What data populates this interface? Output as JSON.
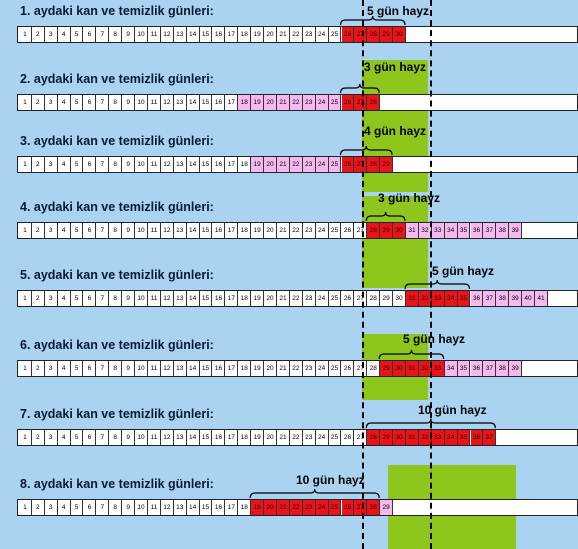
{
  "colors": {
    "sky": "#a9d3f1",
    "hayz": "#e8141a",
    "temiz": "#f6b9ef",
    "green": "#8fc61d"
  },
  "rows": [
    {
      "label": "1. aydaki kan ve temizlik günleri:",
      "hayz_label": "5 gün hayz",
      "last_day": 30,
      "hayz_from": 26,
      "hayz_to": 30,
      "temiz_from": null,
      "temiz_to": null
    },
    {
      "label": "2. aydaki kan ve temizlik günleri:",
      "hayz_label": "3 gün hayz",
      "last_day": 28,
      "hayz_from": 26,
      "hayz_to": 28,
      "temiz_from": 18,
      "temiz_to": 25
    },
    {
      "label": "3. aydaki kan ve temizlik günleri:",
      "hayz_label": "4 gün hayz",
      "last_day": 29,
      "hayz_from": 26,
      "hayz_to": 29,
      "temiz_from": 19,
      "temiz_to": 25
    },
    {
      "label": "4. aydaki kan ve temizlik günleri:",
      "hayz_label": "3 gün hayz",
      "last_day": 39,
      "hayz_from": 28,
      "hayz_to": 30,
      "temiz_from": 31,
      "temiz_to": 39
    },
    {
      "label": "5. aydaki kan ve temizlik günleri:",
      "hayz_label": "5 gün hayz",
      "last_day": 41,
      "hayz_from": 31,
      "hayz_to": 35,
      "temiz_from": 36,
      "temiz_to": 41
    },
    {
      "label": "6. aydaki kan ve temizlik günleri:",
      "hayz_label": "5 gün hayz",
      "last_day": 39,
      "hayz_from": 29,
      "hayz_to": 33,
      "temiz_from": 34,
      "temiz_to": 39
    },
    {
      "label": "7. aydaki kan ve temizlik günleri:",
      "hayz_label": "10 gün hayz",
      "last_day": 37,
      "hayz_from": 28,
      "hayz_to": 37,
      "temiz_from": null,
      "temiz_to": null
    },
    {
      "label": "8. aydaki kan ve temizlik günleri:",
      "hayz_label": "10 gün hayz",
      "last_day": 29,
      "hayz_from": 19,
      "hayz_to": 28,
      "temiz_from": 29,
      "temiz_to": 29
    }
  ]
}
